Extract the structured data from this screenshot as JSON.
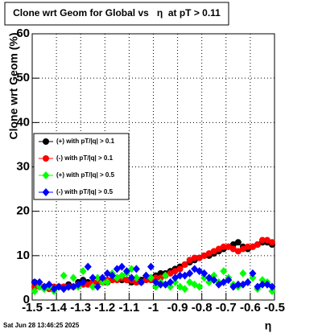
{
  "chart_data": {
    "type": "scatter",
    "title": "Clone wrt Geom for Global vs   η  at pT > 0.11",
    "x_label": "η",
    "y_label": "Clone wrt Geom (%)",
    "xlim": [
      -1.5,
      -0.5
    ],
    "xticks": [
      -1.5,
      -1.4,
      -1.3,
      -1.2,
      -1.1,
      -1,
      -0.9,
      -0.8,
      -0.7,
      -0.6,
      -0.5
    ],
    "ylim": [
      0,
      60
    ],
    "yticks": [
      0,
      10,
      20,
      30,
      40,
      50,
      60
    ],
    "grid": true,
    "x": [
      -1.49,
      -1.47,
      -1.45,
      -1.43,
      -1.41,
      -1.39,
      -1.37,
      -1.35,
      -1.33,
      -1.31,
      -1.29,
      -1.27,
      -1.25,
      -1.23,
      -1.21,
      -1.19,
      -1.17,
      -1.15,
      -1.13,
      -1.11,
      -1.09,
      -1.07,
      -1.05,
      -1.03,
      -1.01,
      -0.99,
      -0.97,
      -0.95,
      -0.93,
      -0.91,
      -0.89,
      -0.87,
      -0.85,
      -0.83,
      -0.81,
      -0.79,
      -0.77,
      -0.75,
      -0.73,
      -0.71,
      -0.69,
      -0.67,
      -0.65,
      -0.63,
      -0.61,
      -0.59,
      -0.57,
      -0.55,
      -0.53,
      -0.51
    ],
    "series": [
      {
        "name": "(+) with pT/|q| > 0.1",
        "color": "#000000",
        "marker": "circle",
        "values": [
          4,
          3,
          3,
          3,
          2.5,
          3,
          3,
          3.5,
          3,
          4,
          4.5,
          4,
          4,
          4,
          4.5,
          4,
          4.5,
          5,
          4.5,
          4.5,
          4,
          4,
          4.5,
          5,
          5,
          5.5,
          6,
          6,
          6.5,
          7,
          7.5,
          8,
          8.5,
          9,
          9.5,
          10,
          10,
          10.5,
          11,
          11.5,
          12,
          12.5,
          13,
          12,
          11.5,
          12,
          12.5,
          13,
          13,
          12.5
        ]
      },
      {
        "name": "(-) with pT/|q| > 0.1",
        "color": "#ff0000",
        "marker": "circle",
        "values": [
          3,
          3,
          3,
          2.5,
          3,
          3,
          3,
          3,
          3,
          3.5,
          3.5,
          3.5,
          4,
          4,
          4,
          4.5,
          4.5,
          4.5,
          5,
          4.5,
          4.5,
          4,
          4,
          4.5,
          4.5,
          5,
          5,
          5.5,
          6,
          6.5,
          7,
          8,
          9,
          9.5,
          9.5,
          10,
          10.5,
          11,
          11.5,
          12,
          12,
          11.5,
          11,
          11.5,
          12,
          12,
          12.5,
          13.5,
          13.5,
          13
        ]
      },
      {
        "name": "(+) with pT/|q| > 0.5",
        "color": "#00ff00",
        "marker": "diamond",
        "values": [
          2,
          3,
          2.5,
          3,
          2,
          3,
          5.5,
          3,
          5,
          3,
          6.5,
          7.5,
          3,
          5,
          4,
          4,
          6,
          5,
          5.5,
          6,
          7,
          5,
          4,
          5.5,
          5,
          3,
          4,
          5.5,
          3,
          4,
          3,
          2.5,
          4,
          3.5,
          3,
          5,
          4,
          5.5,
          4,
          6.5,
          5,
          3.5,
          3,
          6,
          4,
          5,
          2.5,
          4.5,
          4,
          2
        ]
      },
      {
        "name": "(-) with pT/|q| > 0.5",
        "color": "#0000ff",
        "marker": "diamond",
        "values": [
          4,
          4,
          3,
          3.5,
          2.5,
          3,
          2.5,
          3,
          3,
          3.5,
          4,
          7.5,
          5,
          3,
          5,
          6,
          5.5,
          7,
          7.5,
          6.5,
          5,
          7,
          4,
          5.5,
          7.5,
          4,
          3.5,
          3.5,
          4,
          5,
          5.5,
          5.5,
          6,
          7,
          6.5,
          6,
          5,
          4.5,
          3.5,
          4,
          4.5,
          3,
          3.5,
          3.5,
          4,
          6,
          3,
          3.5,
          3.5,
          3
        ]
      }
    ]
  },
  "footer": "Sat Jun 28 13:46:25 2025"
}
